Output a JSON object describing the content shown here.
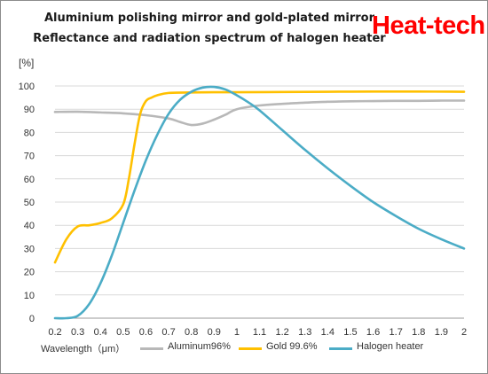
{
  "header": {
    "title_line1": "Aluminium polishing mirror and gold-plated mirror",
    "title_line2": "Reflectance and radiation  spectrum of halogen heater",
    "brand": "Heat-tech"
  },
  "chart_data": {
    "type": "line",
    "title": "Aluminium polishing mirror and gold-plated mirror / Reflectance and radiation spectrum of halogen heater",
    "ylabel": "[%]",
    "xlabel": "Wavelength（μm）",
    "ylim": [
      0,
      100
    ],
    "yticks": [
      0,
      10,
      20,
      30,
      40,
      50,
      60,
      70,
      80,
      90,
      100
    ],
    "xlim": [
      0.2,
      2.0
    ],
    "xtick_labels": [
      "0.2",
      "0.3",
      "0.4",
      "0.5",
      "0.6",
      "0.7",
      "0.8",
      "0.9",
      "1",
      "1.1",
      "1.2",
      "1.3",
      "1.4",
      "1.5",
      "1.6",
      "1.7",
      "1.8",
      "1.9",
      "2"
    ],
    "grid": "horizontal",
    "legend": "bottom",
    "series": [
      {
        "name": "Aluminum96%",
        "color": "#b8b8b8",
        "x": [
          0.2,
          0.3,
          0.4,
          0.5,
          0.6,
          0.7,
          0.75,
          0.8,
          0.85,
          0.9,
          0.95,
          1.0,
          1.1,
          1.2,
          1.3,
          1.4,
          1.5,
          1.6,
          1.7,
          1.8,
          1.9,
          2.0
        ],
        "y": [
          88.8,
          88.9,
          88.6,
          88.2,
          87.4,
          86.0,
          84.5,
          83.2,
          83.8,
          85.5,
          87.6,
          90.0,
          91.6,
          92.3,
          92.8,
          93.2,
          93.4,
          93.5,
          93.6,
          93.6,
          93.7,
          93.7
        ]
      },
      {
        "name": "Gold 99.6%",
        "color": "#ffc000",
        "x": [
          0.2,
          0.25,
          0.3,
          0.35,
          0.4,
          0.45,
          0.5,
          0.525,
          0.55,
          0.575,
          0.6,
          0.625,
          0.65,
          0.7,
          0.8,
          0.9,
          1.0,
          1.2,
          1.4,
          1.6,
          1.8,
          2.0
        ],
        "y": [
          24.0,
          34.0,
          39.5,
          40.0,
          41.0,
          43.0,
          49.0,
          60.0,
          75.0,
          88.0,
          93.5,
          95.0,
          96.0,
          97.0,
          97.2,
          97.3,
          97.3,
          97.4,
          97.5,
          97.6,
          97.6,
          97.5
        ]
      },
      {
        "name": "Halogen heater",
        "color": "#4bacc6",
        "x": [
          0.2,
          0.25,
          0.3,
          0.35,
          0.4,
          0.45,
          0.5,
          0.55,
          0.6,
          0.65,
          0.7,
          0.75,
          0.8,
          0.85,
          0.9,
          0.95,
          1.0,
          1.05,
          1.1,
          1.2,
          1.3,
          1.4,
          1.5,
          1.6,
          1.7,
          1.8,
          1.9,
          2.0
        ],
        "y": [
          0.0,
          0.0,
          1.0,
          6.0,
          15.0,
          27.0,
          41.0,
          55.0,
          68.0,
          79.0,
          88.0,
          94.0,
          97.5,
          99.3,
          99.6,
          98.5,
          96.0,
          93.0,
          89.5,
          81.0,
          72.5,
          64.5,
          57.0,
          50.0,
          44.0,
          38.5,
          34.0,
          30.0
        ]
      }
    ]
  }
}
